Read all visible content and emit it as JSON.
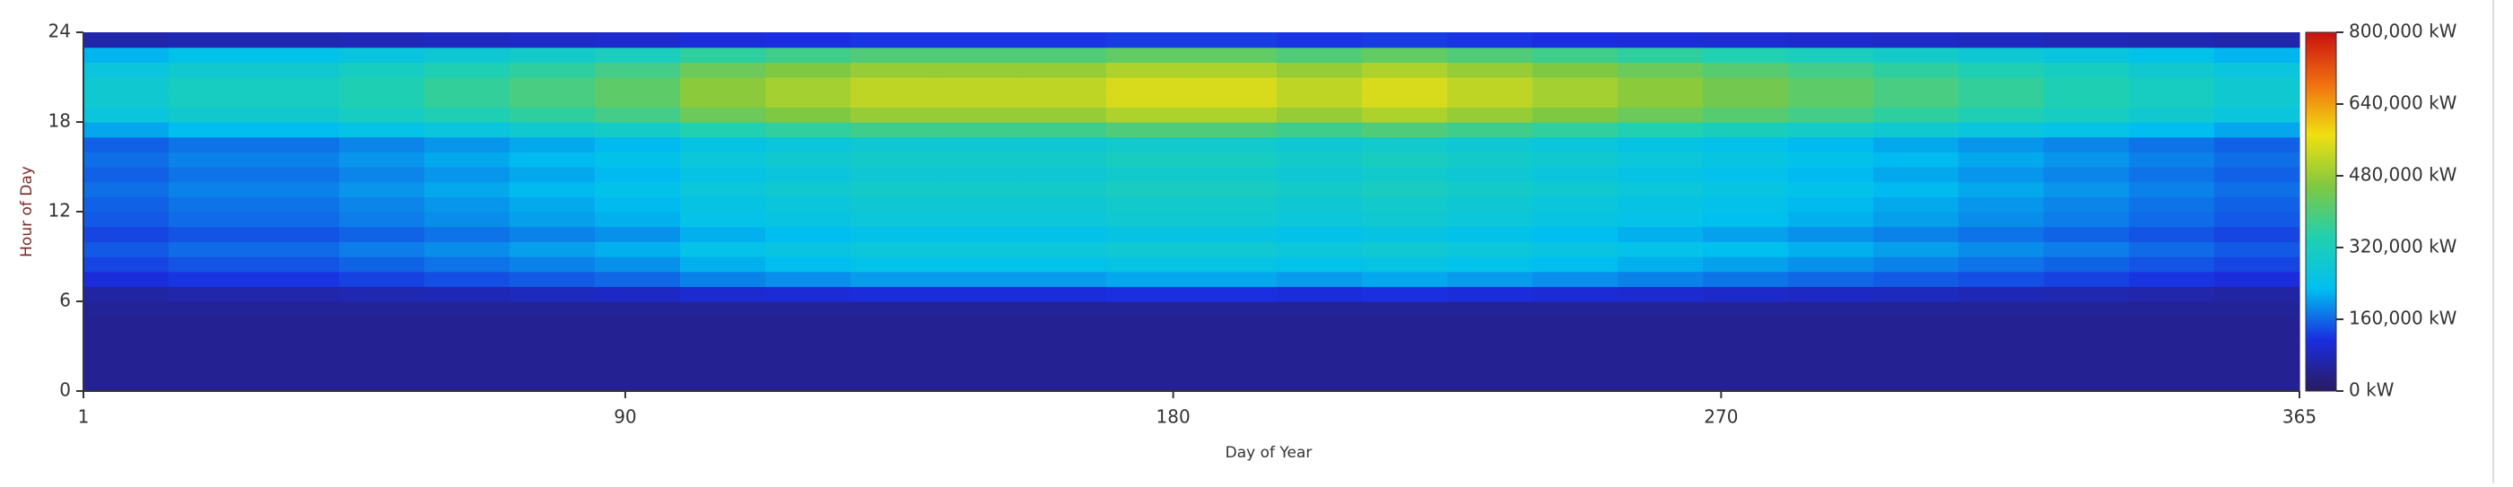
{
  "chart_data": {
    "type": "heatmap",
    "x_label": "Day of Year",
    "y_label": "Hour of Day",
    "xlim": [
      1,
      365
    ],
    "xticks": [
      1,
      90,
      180,
      270,
      365
    ],
    "ylim": [
      0,
      24
    ],
    "yticks": [
      0,
      6,
      12,
      18,
      24
    ],
    "x_bins": [
      1,
      15,
      29,
      43,
      57,
      71,
      85,
      99,
      113,
      127,
      141,
      155,
      169,
      183,
      197,
      211,
      225,
      239,
      253,
      267,
      281,
      295,
      309,
      323,
      337,
      351,
      365
    ],
    "y_bins": [
      0,
      1,
      2,
      3,
      4,
      5,
      6,
      7,
      8,
      9,
      10,
      11,
      12,
      13,
      14,
      15,
      16,
      17,
      18,
      19,
      20,
      21,
      22,
      23,
      24
    ],
    "clim": [
      0,
      800000
    ],
    "colorscale": [
      "#2a1a60",
      "#1a2ee0",
      "#00c0f0",
      "#20d0b0",
      "#80c840",
      "#f0e010",
      "#f07010",
      "#c81010"
    ],
    "cticks": [
      {
        "value": 0,
        "label": "0 kW"
      },
      {
        "value": 160000,
        "label": "160,000 kW"
      },
      {
        "value": 320000,
        "label": "320,000 kW"
      },
      {
        "value": 480000,
        "label": "480,000 kW"
      },
      {
        "value": 640000,
        "label": "640,000 kW"
      },
      {
        "value": 800000,
        "label": "800,000 kW"
      }
    ],
    "values": [
      [
        45000,
        45000,
        45000,
        45000,
        45000,
        45000,
        45000,
        45000,
        45000,
        45000,
        45000,
        45000,
        45000,
        45000,
        45000,
        45000,
        45000,
        45000,
        45000,
        45000,
        45000,
        45000,
        45000,
        45000,
        45000,
        45000
      ],
      [
        45000,
        45000,
        45000,
        45000,
        45000,
        45000,
        45000,
        45000,
        45000,
        45000,
        45000,
        45000,
        45000,
        45000,
        45000,
        45000,
        45000,
        45000,
        45000,
        45000,
        45000,
        45000,
        45000,
        45000,
        45000,
        45000
      ],
      [
        45000,
        45000,
        45000,
        45000,
        45000,
        45000,
        45000,
        45000,
        45000,
        45000,
        45000,
        45000,
        45000,
        45000,
        45000,
        45000,
        45000,
        45000,
        45000,
        45000,
        45000,
        45000,
        45000,
        45000,
        45000,
        45000
      ],
      [
        45000,
        45000,
        45000,
        45000,
        45000,
        45000,
        45000,
        45000,
        45000,
        45000,
        45000,
        45000,
        45000,
        45000,
        45000,
        45000,
        45000,
        45000,
        45000,
        45000,
        45000,
        45000,
        45000,
        45000,
        45000,
        45000
      ],
      [
        45000,
        45000,
        45000,
        45000,
        45000,
        45000,
        45000,
        45000,
        45000,
        45000,
        45000,
        45000,
        45000,
        45000,
        45000,
        45000,
        45000,
        45000,
        45000,
        45000,
        45000,
        45000,
        45000,
        45000,
        45000,
        45000
      ],
      [
        50000,
        50000,
        50000,
        50000,
        50000,
        50000,
        50000,
        50000,
        50000,
        50000,
        50000,
        50000,
        50000,
        50000,
        50000,
        50000,
        50000,
        50000,
        50000,
        50000,
        50000,
        50000,
        50000,
        50000,
        50000,
        50000
      ],
      [
        60000,
        66000,
        66000,
        72000,
        77000,
        83000,
        88000,
        99000,
        105000,
        110000,
        110000,
        110000,
        116000,
        116000,
        110000,
        116000,
        110000,
        105000,
        99000,
        94000,
        88000,
        83000,
        77000,
        72000,
        66000,
        60000
      ],
      [
        110000,
        120000,
        120000,
        130000,
        140000,
        150000,
        160000,
        180000,
        190000,
        200000,
        200000,
        200000,
        210000,
        210000,
        200000,
        210000,
        200000,
        190000,
        180000,
        170000,
        160000,
        150000,
        140000,
        130000,
        120000,
        110000
      ],
      [
        132000,
        144000,
        144000,
        156000,
        168000,
        180000,
        192000,
        216000,
        228000,
        240000,
        240000,
        240000,
        252000,
        252000,
        240000,
        252000,
        240000,
        228000,
        216000,
        204000,
        192000,
        180000,
        168000,
        156000,
        144000,
        132000
      ],
      [
        149000,
        162000,
        162000,
        176000,
        189000,
        203000,
        216000,
        243000,
        257000,
        270000,
        270000,
        270000,
        284000,
        284000,
        270000,
        284000,
        270000,
        257000,
        243000,
        230000,
        216000,
        203000,
        189000,
        176000,
        162000,
        149000
      ],
      [
        132000,
        144000,
        144000,
        156000,
        168000,
        180000,
        192000,
        216000,
        228000,
        240000,
        240000,
        240000,
        252000,
        252000,
        240000,
        252000,
        240000,
        228000,
        216000,
        204000,
        192000,
        180000,
        168000,
        156000,
        144000,
        132000
      ],
      [
        149000,
        162000,
        162000,
        176000,
        189000,
        203000,
        216000,
        243000,
        257000,
        270000,
        270000,
        270000,
        284000,
        284000,
        270000,
        284000,
        270000,
        257000,
        243000,
        230000,
        216000,
        203000,
        189000,
        176000,
        162000,
        149000
      ],
      [
        154000,
        168000,
        168000,
        182000,
        196000,
        210000,
        224000,
        252000,
        266000,
        280000,
        280000,
        280000,
        294000,
        294000,
        280000,
        294000,
        280000,
        266000,
        252000,
        238000,
        224000,
        210000,
        196000,
        182000,
        168000,
        154000
      ],
      [
        165000,
        180000,
        180000,
        195000,
        210000,
        225000,
        240000,
        270000,
        285000,
        300000,
        300000,
        300000,
        315000,
        315000,
        300000,
        315000,
        300000,
        285000,
        270000,
        255000,
        240000,
        225000,
        210000,
        195000,
        180000,
        165000
      ],
      [
        154000,
        168000,
        168000,
        182000,
        196000,
        210000,
        224000,
        252000,
        266000,
        280000,
        280000,
        280000,
        294000,
        294000,
        280000,
        294000,
        280000,
        266000,
        252000,
        238000,
        224000,
        210000,
        196000,
        182000,
        168000,
        154000
      ],
      [
        165000,
        180000,
        180000,
        195000,
        210000,
        225000,
        240000,
        270000,
        285000,
        300000,
        300000,
        300000,
        315000,
        315000,
        300000,
        315000,
        300000,
        285000,
        270000,
        255000,
        240000,
        225000,
        210000,
        195000,
        180000,
        165000
      ],
      [
        154000,
        168000,
        168000,
        182000,
        196000,
        210000,
        224000,
        252000,
        266000,
        280000,
        280000,
        280000,
        294000,
        294000,
        280000,
        294000,
        280000,
        266000,
        252000,
        238000,
        224000,
        210000,
        196000,
        182000,
        168000,
        154000
      ],
      [
        209000,
        228000,
        228000,
        247000,
        266000,
        285000,
        304000,
        342000,
        361000,
        380000,
        380000,
        380000,
        399000,
        399000,
        380000,
        399000,
        380000,
        361000,
        342000,
        323000,
        304000,
        285000,
        266000,
        247000,
        228000,
        209000
      ],
      [
        264000,
        288000,
        288000,
        312000,
        336000,
        360000,
        384000,
        432000,
        456000,
        480000,
        480000,
        480000,
        504000,
        504000,
        480000,
        504000,
        480000,
        456000,
        432000,
        408000,
        384000,
        360000,
        336000,
        312000,
        288000,
        264000
      ],
      [
        286000,
        312000,
        312000,
        338000,
        364000,
        390000,
        416000,
        468000,
        494000,
        520000,
        520000,
        520000,
        546000,
        546000,
        520000,
        546000,
        520000,
        494000,
        468000,
        442000,
        416000,
        390000,
        364000,
        338000,
        312000,
        286000
      ],
      [
        286000,
        312000,
        312000,
        338000,
        364000,
        390000,
        416000,
        468000,
        494000,
        520000,
        520000,
        520000,
        546000,
        546000,
        520000,
        546000,
        520000,
        494000,
        468000,
        442000,
        416000,
        390000,
        364000,
        338000,
        312000,
        286000
      ],
      [
        264000,
        288000,
        288000,
        312000,
        336000,
        360000,
        384000,
        432000,
        456000,
        480000,
        480000,
        480000,
        504000,
        504000,
        480000,
        504000,
        480000,
        456000,
        432000,
        408000,
        384000,
        360000,
        336000,
        312000,
        288000,
        264000
      ],
      [
        220000,
        240000,
        240000,
        260000,
        280000,
        300000,
        320000,
        360000,
        380000,
        400000,
        400000,
        400000,
        420000,
        420000,
        400000,
        420000,
        400000,
        380000,
        360000,
        340000,
        320000,
        300000,
        280000,
        260000,
        240000,
        220000
      ],
      [
        66000,
        72000,
        72000,
        78000,
        84000,
        90000,
        96000,
        108000,
        114000,
        120000,
        120000,
        120000,
        126000,
        126000,
        120000,
        126000,
        120000,
        114000,
        108000,
        102000,
        96000,
        90000,
        84000,
        78000,
        72000,
        66000
      ]
    ]
  }
}
